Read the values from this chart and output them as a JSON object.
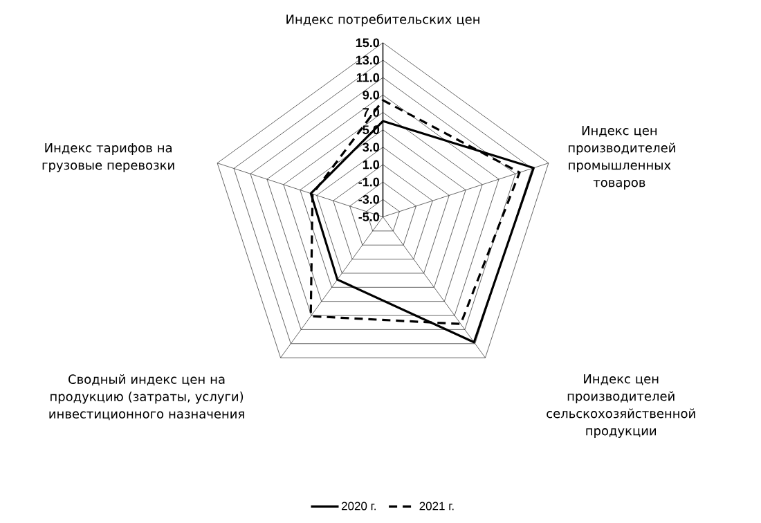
{
  "chart_data": {
    "type": "radar",
    "categories": [
      "Индекс потребительских цен",
      "Индекс цен производителей промышленных товаров",
      "Индекс цен производителей сельскохозяйственной продукции",
      "Сводный индекс цен на продукцию (затраты, услуги) инвестиционного назначения",
      "Индекс тарифов на грузовые перевозки"
    ],
    "series": [
      {
        "name": "2020 г.",
        "color": "#000000",
        "line_style": "solid",
        "values": [
          6.0,
          13.2,
          12.8,
          3.9,
          3.7
        ]
      },
      {
        "name": "2021 г.",
        "color": "#000000",
        "line_style": "dashed",
        "values": [
          8.4,
          11.5,
          10.2,
          9.1,
          3.5
        ]
      }
    ],
    "ylim": [
      -5,
      15
    ],
    "yticks": [
      {
        "value": -5,
        "label": "-5.0"
      },
      {
        "value": -3,
        "label": "-3.0"
      },
      {
        "value": -1,
        "label": "-1.0"
      },
      {
        "value": 1,
        "label": "1.0"
      },
      {
        "value": 3,
        "label": "3.0"
      },
      {
        "value": 5,
        "label": "5.0"
      },
      {
        "value": 7,
        "label": "7.0"
      },
      {
        "value": 9,
        "label": "9.0"
      },
      {
        "value": 11,
        "label": "11.0"
      },
      {
        "value": 13,
        "label": "13.0"
      },
      {
        "value": 15,
        "label": "15.0"
      }
    ],
    "grid": true,
    "legend": "bottom",
    "marker": "none"
  }
}
